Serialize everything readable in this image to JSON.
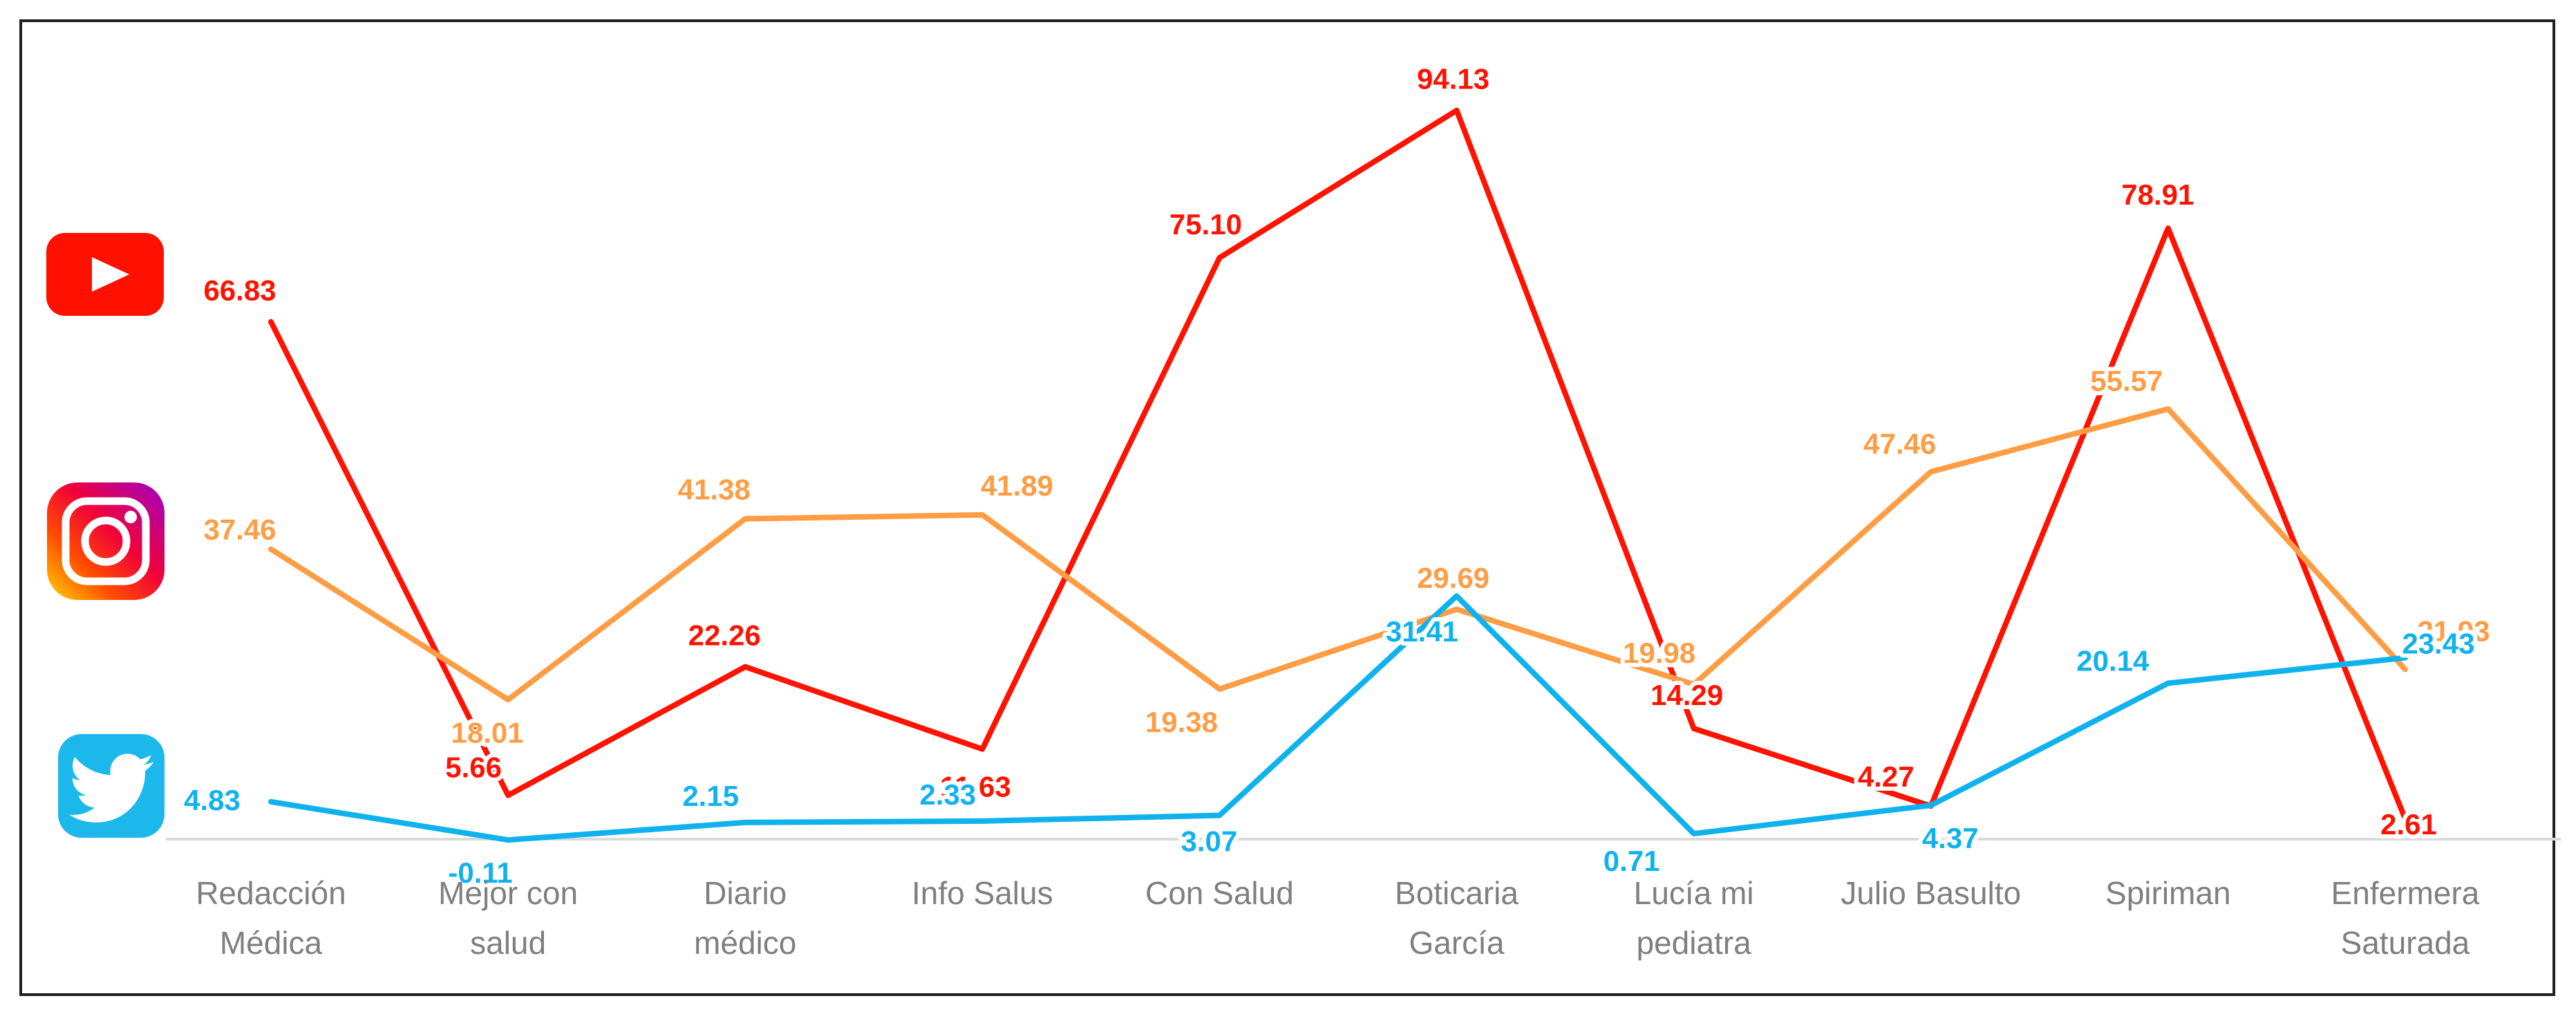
{
  "chart_data": {
    "type": "line",
    "title": "",
    "xlabel": "",
    "ylabel": "",
    "categories": [
      "Redacción Médica",
      "Mejor con salud",
      "Diario médico",
      "Info Salus",
      "Con Salud",
      "Boticaria García",
      "Lucía mi pediatra",
      "Julio Basulto",
      "Spiriman",
      "Enfermera Saturada"
    ],
    "category_lines": [
      [
        "Redacción",
        "Médica"
      ],
      [
        "Mejor con",
        "salud"
      ],
      [
        "Diario",
        "médico"
      ],
      [
        "Info Salus"
      ],
      [
        "Con Salud"
      ],
      [
        "Boticaria",
        "García"
      ],
      [
        "Lucía mi",
        "pediatra"
      ],
      [
        "Julio Basulto"
      ],
      [
        "Spiriman"
      ],
      [
        "Enfermera",
        "Saturada"
      ]
    ],
    "series": [
      {
        "name": "YouTube",
        "icon": "youtube-icon",
        "color": "#FF1200",
        "values": [
          66.83,
          5.66,
          22.26,
          11.63,
          75.1,
          94.13,
          14.29,
          4.27,
          78.91,
          2.61
        ]
      },
      {
        "name": "Instagram",
        "icon": "instagram-icon",
        "color": "#FF9D45",
        "values": [
          37.46,
          18.01,
          41.38,
          41.89,
          19.38,
          29.69,
          19.98,
          47.46,
          55.57,
          21.93
        ]
      },
      {
        "name": "Twitter",
        "icon": "twitter-icon",
        "color": "#10B2EE",
        "values": [
          4.83,
          -0.11,
          2.15,
          2.33,
          3.07,
          31.41,
          0.71,
          4.37,
          20.14,
          23.43
        ]
      }
    ],
    "value_label_decimals": 2,
    "ylim": [
      -2,
      100
    ],
    "grid": false,
    "legend_position": "left",
    "axis_color": "#DADADA",
    "category_label_color": "#7F7F7F"
  },
  "icons": {
    "youtube": "youtube-play-icon",
    "instagram": "instagram-camera-icon",
    "twitter": "twitter-bird-icon"
  }
}
